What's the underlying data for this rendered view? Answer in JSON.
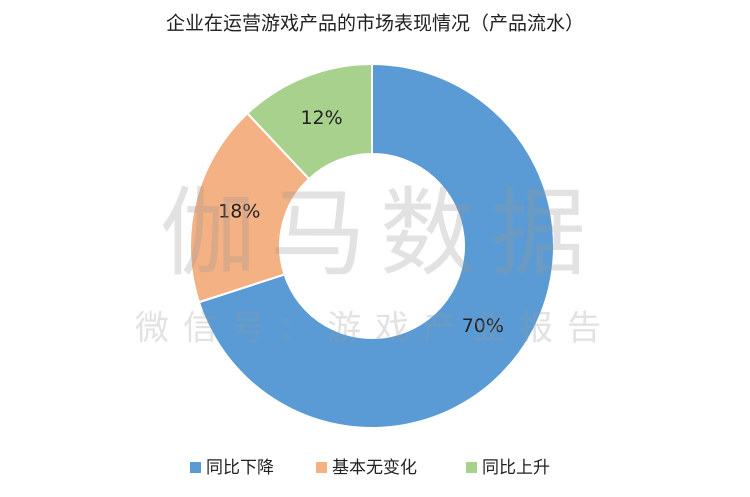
{
  "chart_data": {
    "type": "donut",
    "title": "企业在运营游戏产品的市场表现情况（产品流水）",
    "categories": [
      "同比下降",
      "基本无变化",
      "同比上升"
    ],
    "values": [
      70,
      18,
      12
    ],
    "value_labels": [
      "70%",
      "18%",
      "12%"
    ],
    "colors": [
      "#5b9bd5",
      "#f4b183",
      "#a9d18e"
    ],
    "legend": "bottom",
    "watermark": [
      "伽马数据",
      "微信号：游戏产业报告"
    ]
  }
}
